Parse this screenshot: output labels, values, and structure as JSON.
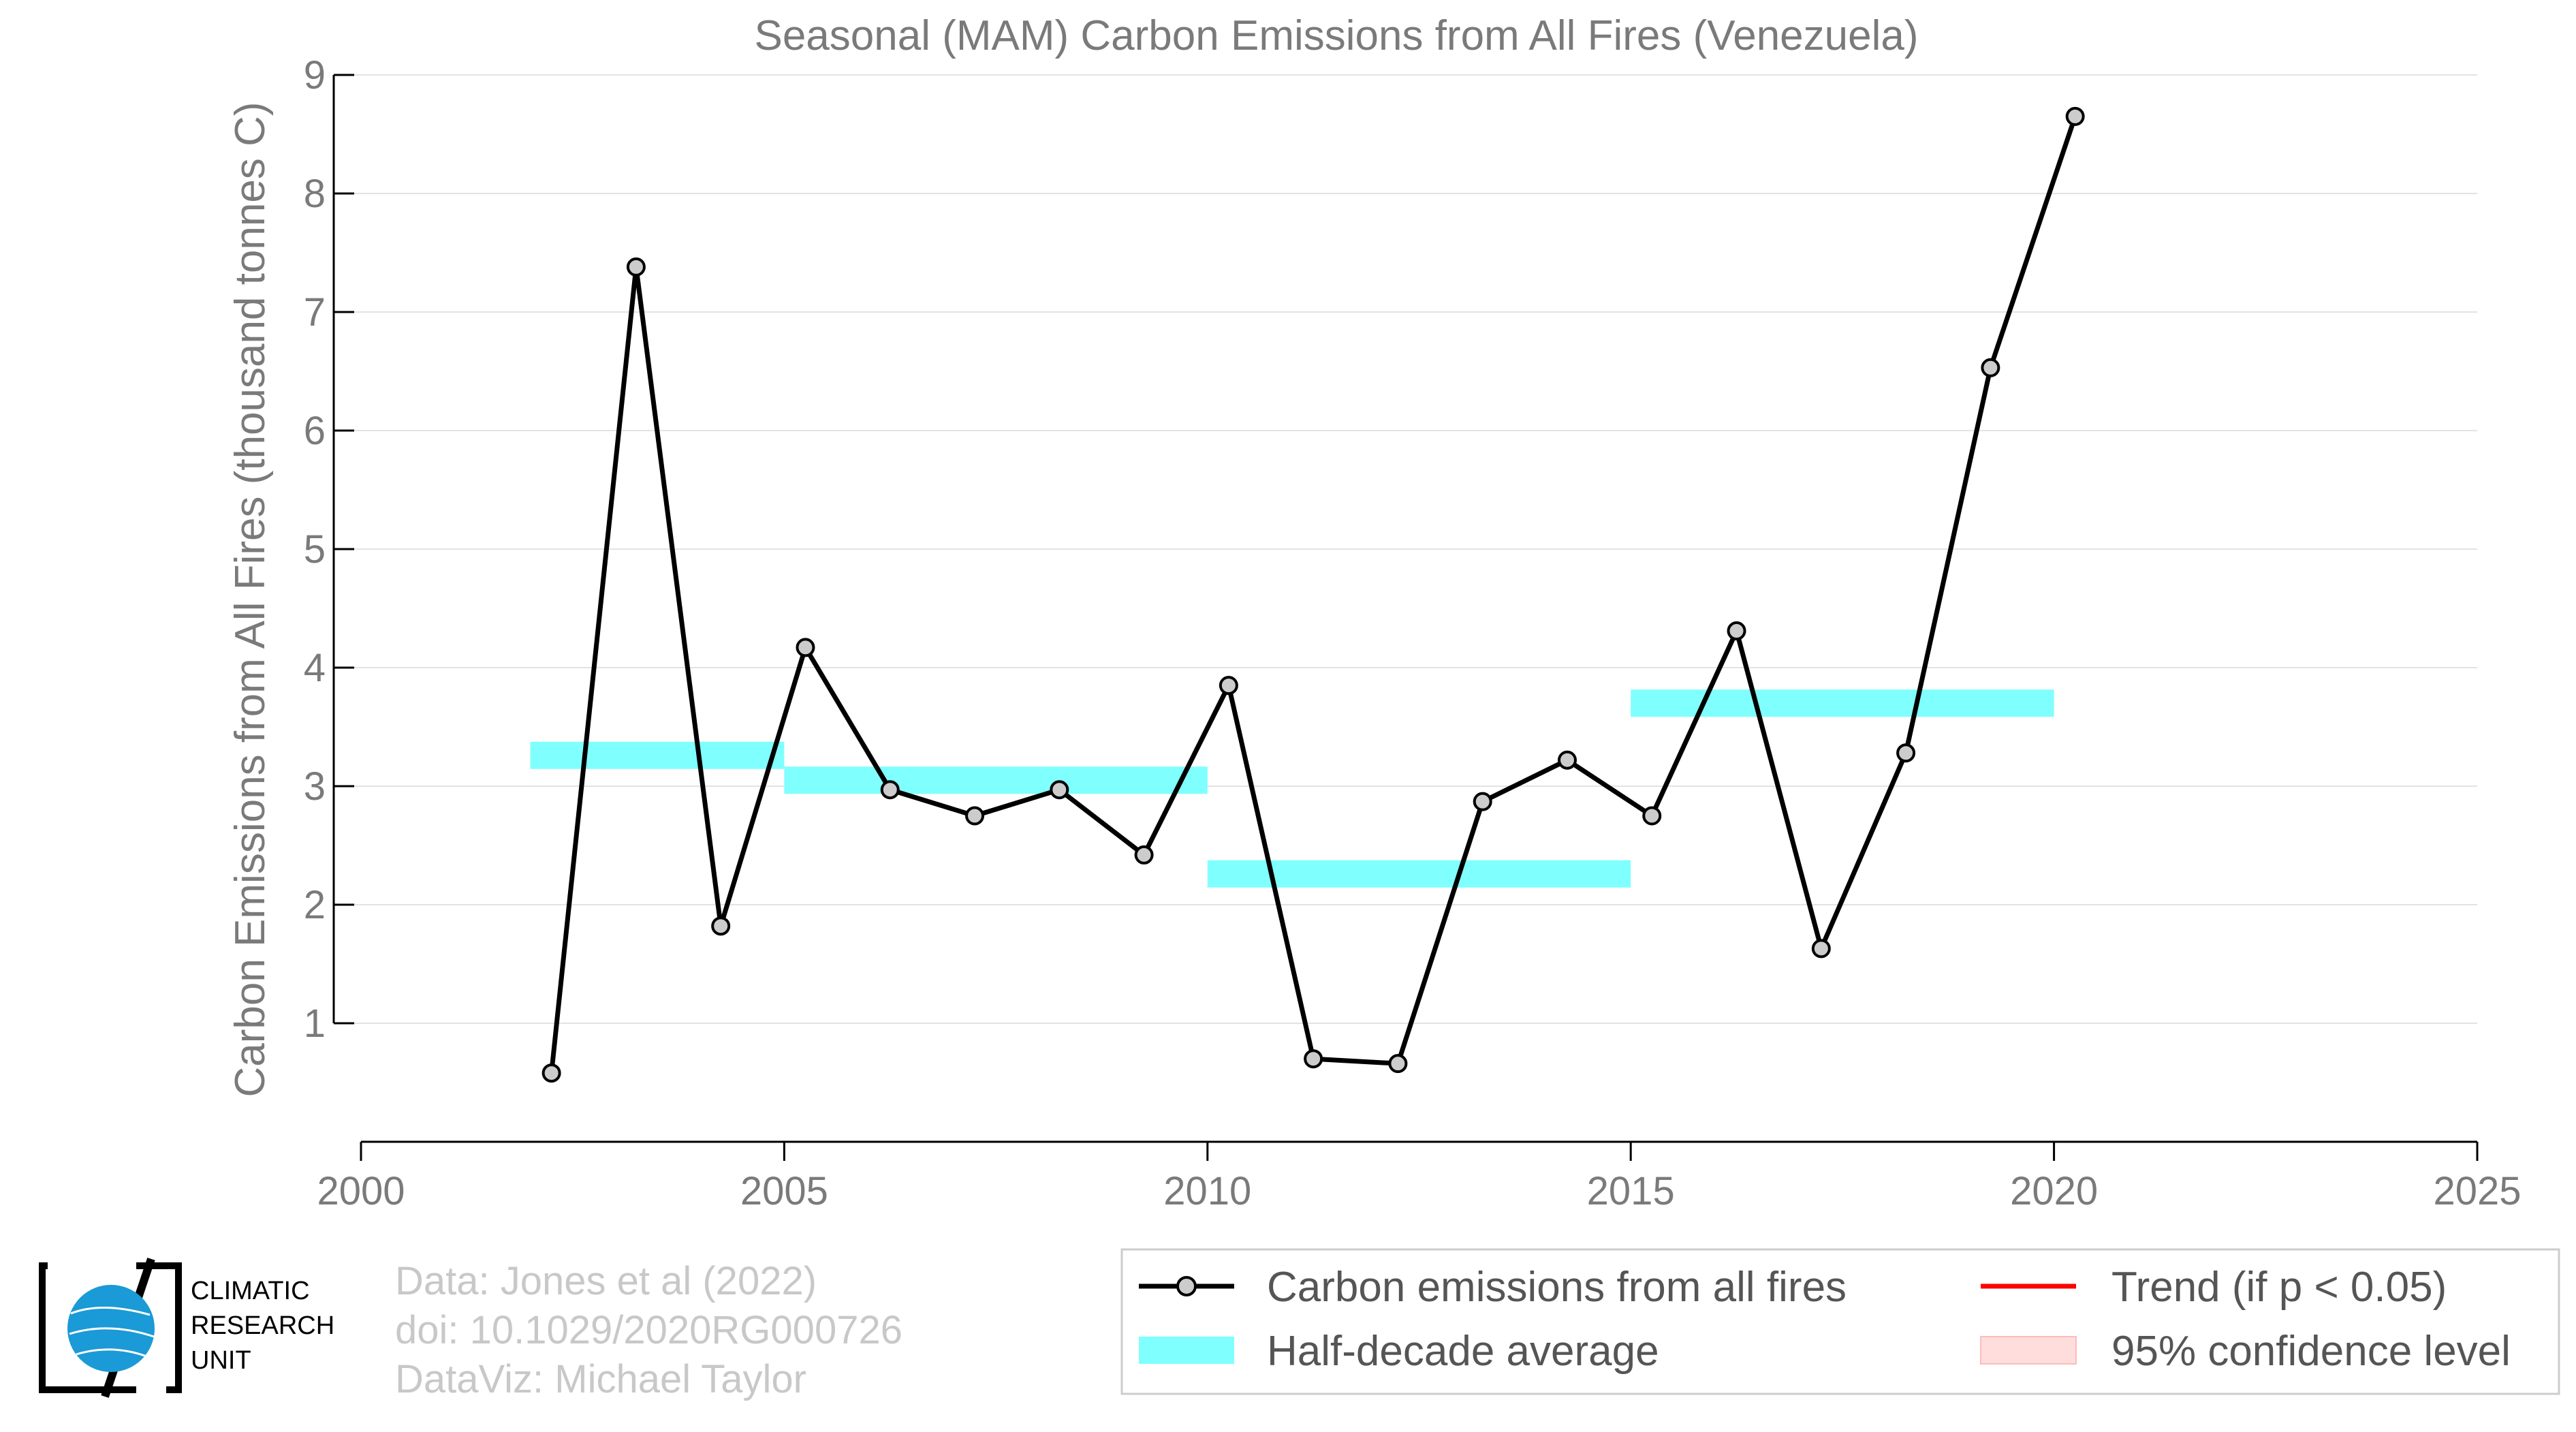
{
  "chart_data": {
    "type": "line",
    "title": "Seasonal (MAM) Carbon Emissions from All Fires (Venezuela)",
    "xlabel": "",
    "ylabel": "Carbon Emissions from All Fires (thousand tonnes C)",
    "xlim": [
      2000,
      2025
    ],
    "ylim": [
      0,
      9
    ],
    "x_ticks": [
      2000,
      2005,
      2010,
      2015,
      2020,
      2025
    ],
    "y_ticks": [
      1,
      2,
      3,
      4,
      5,
      6,
      7,
      8,
      9
    ],
    "grid": "horizontal",
    "series": [
      {
        "name": "Carbon emissions from all fires",
        "color": "#000000",
        "marker_fill": "#cccccc",
        "x": [
          2002.25,
          2003.25,
          2004.25,
          2005.25,
          2006.25,
          2007.25,
          2008.25,
          2009.25,
          2010.25,
          2011.25,
          2012.25,
          2013.25,
          2014.25,
          2015.25,
          2016.25,
          2017.25,
          2018.25,
          2019.25,
          2020.25
        ],
        "y": [
          0.58,
          7.38,
          1.82,
          4.17,
          2.97,
          2.75,
          2.97,
          2.42,
          3.85,
          0.7,
          0.66,
          2.87,
          3.22,
          2.75,
          4.31,
          1.63,
          3.28,
          6.53,
          8.65
        ]
      }
    ],
    "half_decade_averages": {
      "name": "Half-decade average",
      "color": "#80ffff",
      "bars": [
        {
          "x_start": 2002,
          "x_end": 2005,
          "value": 3.26
        },
        {
          "x_start": 2005,
          "x_end": 2010,
          "value": 3.05
        },
        {
          "x_start": 2010,
          "x_end": 2015,
          "value": 2.26
        },
        {
          "x_start": 2015,
          "x_end": 2020,
          "value": 3.7
        }
      ]
    },
    "legend": {
      "placement": "bottom-right",
      "items": [
        {
          "label": "Carbon emissions from all fires",
          "kind": "line-marker",
          "color": "#000000"
        },
        {
          "label": "Trend (if p < 0.05)",
          "kind": "line",
          "color": "#ff0000"
        },
        {
          "label": "Half-decade average",
          "kind": "band",
          "color": "#80ffff"
        },
        {
          "label": "95% confidence level",
          "kind": "band",
          "color": "#ffdddd"
        }
      ]
    }
  },
  "credits": {
    "line1": "Data: Jones et al (2022)",
    "line2": "doi: 10.1029/2020RG000726",
    "line3": "DataViz: Michael Taylor"
  },
  "logo": {
    "line1": "CLIMATIC",
    "line2": "RESEARCH",
    "line3": "UNIT",
    "colors": {
      "globe": "#1a9ad6",
      "frame": "#000000"
    }
  }
}
